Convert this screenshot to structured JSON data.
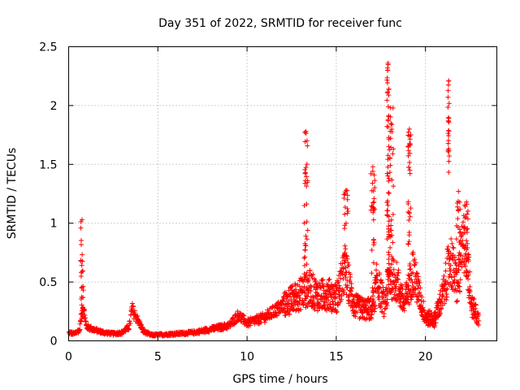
{
  "chart_data": {
    "type": "scatter",
    "title": "Day 351 of 2022, SRMTID for receiver func",
    "xlabel": "GPS time / hours",
    "ylabel": "SRMTID / TECUs",
    "xlim": [
      0,
      24
    ],
    "ylim": [
      0,
      2.5
    ],
    "x_ticks": [
      0,
      5,
      10,
      15,
      20
    ],
    "x_tick_labels": [
      "0",
      "5",
      "10",
      "15",
      "20"
    ],
    "y_ticks": [
      0,
      0.5,
      1,
      1.5,
      2,
      2.5
    ],
    "y_tick_labels": [
      "0",
      "0.5",
      "1",
      "1.5",
      "2",
      "2.5"
    ],
    "grid": true,
    "marker": "+",
    "color": "#ff0000",
    "profile": [
      [
        0.0,
        0.07
      ],
      [
        0.3,
        0.06
      ],
      [
        0.6,
        0.09
      ],
      [
        0.8,
        0.3
      ],
      [
        1.0,
        0.12
      ],
      [
        1.5,
        0.09
      ],
      [
        2.0,
        0.07
      ],
      [
        2.5,
        0.06
      ],
      [
        3.0,
        0.07
      ],
      [
        3.4,
        0.12
      ],
      [
        3.55,
        0.27
      ],
      [
        3.8,
        0.2
      ],
      [
        4.2,
        0.08
      ],
      [
        4.6,
        0.05
      ],
      [
        5.0,
        0.05
      ],
      [
        6.0,
        0.06
      ],
      [
        7.0,
        0.07
      ],
      [
        8.0,
        0.1
      ],
      [
        9.0,
        0.13
      ],
      [
        9.5,
        0.22
      ],
      [
        10.0,
        0.15
      ],
      [
        11.0,
        0.2
      ],
      [
        12.0,
        0.3
      ],
      [
        13.0,
        0.4
      ],
      [
        13.5,
        0.45
      ],
      [
        14.0,
        0.38
      ],
      [
        14.5,
        0.4
      ],
      [
        15.0,
        0.36
      ],
      [
        15.5,
        0.6
      ],
      [
        16.0,
        0.3
      ],
      [
        16.5,
        0.27
      ],
      [
        17.0,
        0.27
      ],
      [
        17.3,
        0.5
      ],
      [
        17.7,
        0.3
      ],
      [
        18.0,
        0.55
      ],
      [
        18.4,
        0.5
      ],
      [
        18.8,
        0.3
      ],
      [
        19.3,
        0.6
      ],
      [
        19.8,
        0.3
      ],
      [
        20.0,
        0.2
      ],
      [
        20.5,
        0.18
      ],
      [
        21.0,
        0.4
      ],
      [
        21.4,
        0.7
      ],
      [
        21.8,
        0.45
      ],
      [
        22.2,
        0.9
      ],
      [
        22.6,
        0.3
      ],
      [
        23.0,
        0.18
      ]
    ],
    "bursts": [
      {
        "t": 0.75,
        "w": 0.08,
        "min": 0.2,
        "max": 1.03
      },
      {
        "t": 13.3,
        "w": 0.1,
        "min": 0.5,
        "max": 1.78
      },
      {
        "t": 15.55,
        "w": 0.12,
        "min": 0.7,
        "max": 1.28
      },
      {
        "t": 17.05,
        "w": 0.12,
        "min": 0.4,
        "max": 1.48
      },
      {
        "t": 17.9,
        "w": 0.06,
        "min": 0.5,
        "max": 2.36
      },
      {
        "t": 18.05,
        "w": 0.15,
        "min": 0.4,
        "max": 1.98
      },
      {
        "t": 19.1,
        "w": 0.08,
        "min": 0.5,
        "max": 1.8
      },
      {
        "t": 21.3,
        "w": 0.04,
        "min": 1.4,
        "max": 2.21
      },
      {
        "t": 21.85,
        "w": 0.12,
        "min": 0.6,
        "max": 1.27
      },
      {
        "t": 22.3,
        "w": 0.15,
        "min": 0.5,
        "max": 1.18
      }
    ]
  }
}
